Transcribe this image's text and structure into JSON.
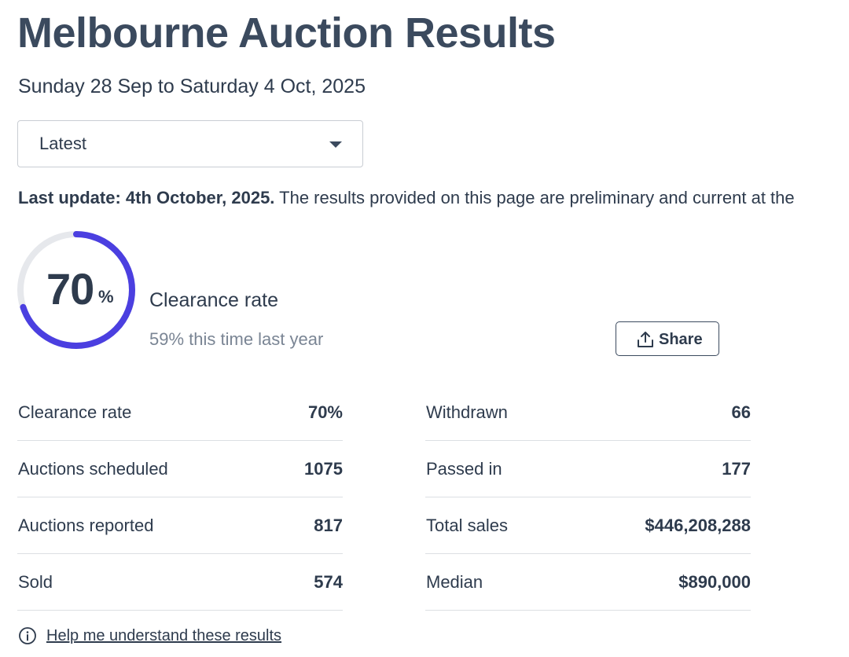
{
  "page": {
    "title": "Melbourne Auction Results",
    "date_range": "Sunday 28 Sep to Saturday 4 Oct, 2025"
  },
  "period_select": {
    "value": "Latest"
  },
  "update": {
    "label": "Last update: 4th October, 2025.",
    "text": "The results provided on this page are preliminary and current at the"
  },
  "summary": {
    "clearance_value": "70",
    "clearance_unit": "%",
    "clearance_fraction": 0.7,
    "clearance_label": "Clearance rate",
    "last_year": "59% this time last year",
    "accent_color": "#4b3fe0",
    "track_color": "#e6e8ec"
  },
  "share": {
    "label": "Share",
    "icon": "share-upload-icon"
  },
  "stats": {
    "left": [
      {
        "label": "Clearance rate",
        "value": "70%"
      },
      {
        "label": "Auctions scheduled",
        "value": "1075"
      },
      {
        "label": "Auctions reported",
        "value": "817"
      },
      {
        "label": "Sold",
        "value": "574"
      }
    ],
    "right": [
      {
        "label": "Withdrawn",
        "value": "66"
      },
      {
        "label": "Passed in",
        "value": "177"
      },
      {
        "label": "Total sales",
        "value": "$446,208,288"
      },
      {
        "label": "Median",
        "value": "$890,000"
      }
    ]
  },
  "help": {
    "link": "Help me understand these results",
    "icon": "info-circle-icon"
  }
}
